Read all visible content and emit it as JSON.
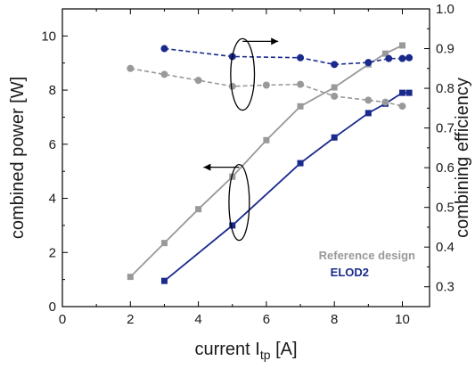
{
  "chart_data": {
    "type": "line",
    "xlabel": "current I",
    "xlabel_sub": "tp",
    "xlabel_unit": " [A]",
    "ylabel_left": "combined power [W]",
    "ylabel_right": "combining efficiency",
    "xlim": [
      0,
      10.8
    ],
    "ylim_left": [
      0,
      11
    ],
    "ylim_right": [
      0.25,
      1.0
    ],
    "x_ticks": [
      0,
      2,
      4,
      6,
      8,
      10
    ],
    "y_left_ticks": [
      0,
      2,
      4,
      6,
      8,
      10
    ],
    "y_right_ticks": [
      0.3,
      0.4,
      0.5,
      0.6,
      0.7,
      0.8,
      0.9,
      1.0
    ],
    "x_tick_labels": [
      "0",
      "2",
      "4",
      "6",
      "8",
      "10"
    ],
    "y_left_tick_labels": [
      "0",
      "2",
      "4",
      "6",
      "8",
      "10"
    ],
    "y_right_tick_labels": [
      "0.3",
      "0.4",
      "0.5",
      "0.6",
      "0.7",
      "0.8",
      "0.9",
      "1.0"
    ],
    "grid": false,
    "legend_position": "bottom-right",
    "series": [
      {
        "name": "Reference design",
        "axis": "left",
        "style": "solid",
        "marker": "square",
        "color": "#999999",
        "points": [
          [
            2,
            1.1
          ],
          [
            3,
            2.35
          ],
          [
            4,
            3.6
          ],
          [
            5,
            4.8
          ],
          [
            6,
            6.15
          ],
          [
            7,
            7.4
          ],
          [
            8,
            8.1
          ],
          [
            9,
            8.95
          ],
          [
            9.5,
            9.35
          ],
          [
            10,
            9.65
          ]
        ]
      },
      {
        "name": "ELOD2",
        "axis": "left",
        "style": "solid",
        "marker": "square",
        "color": "#1a2a8c",
        "points": [
          [
            3,
            0.95
          ],
          [
            5,
            3.0
          ],
          [
            7,
            5.3
          ],
          [
            8,
            6.25
          ],
          [
            9,
            7.15
          ],
          [
            9.5,
            7.5
          ],
          [
            10,
            7.9
          ],
          [
            10.2,
            7.9
          ]
        ]
      },
      {
        "axis": "right",
        "style": "dashed",
        "marker": "circle",
        "color": "#999999",
        "points": [
          [
            2,
            0.85
          ],
          [
            3,
            0.835
          ],
          [
            4,
            0.82
          ],
          [
            5,
            0.805
          ],
          [
            6,
            0.808
          ],
          [
            7,
            0.81
          ],
          [
            8,
            0.78
          ],
          [
            9,
            0.77
          ],
          [
            9.5,
            0.765
          ],
          [
            10,
            0.755
          ]
        ]
      },
      {
        "axis": "right",
        "style": "dashed",
        "marker": "circle",
        "color": "#1a2a8c",
        "points": [
          [
            3,
            0.9
          ],
          [
            5,
            0.88
          ],
          [
            7,
            0.877
          ],
          [
            8,
            0.86
          ],
          [
            9,
            0.865
          ],
          [
            9.6,
            0.875
          ],
          [
            10,
            0.875
          ],
          [
            10.2,
            0.877
          ]
        ]
      }
    ],
    "annotations": [
      {
        "type": "ellipse-arrow",
        "points_to": "right-axis",
        "center": [
          5.3,
          0.835
        ],
        "radius": [
          0.35,
          0.09
        ]
      },
      {
        "type": "ellipse-arrow",
        "points_to": "left-axis",
        "center": [
          5.2,
          3.85
        ],
        "radius": [
          0.3,
          1.4
        ]
      }
    ],
    "legend": [
      {
        "label": "Reference design",
        "color": "#999999"
      },
      {
        "label": "ELOD2",
        "color": "#1a2a8c"
      }
    ]
  }
}
